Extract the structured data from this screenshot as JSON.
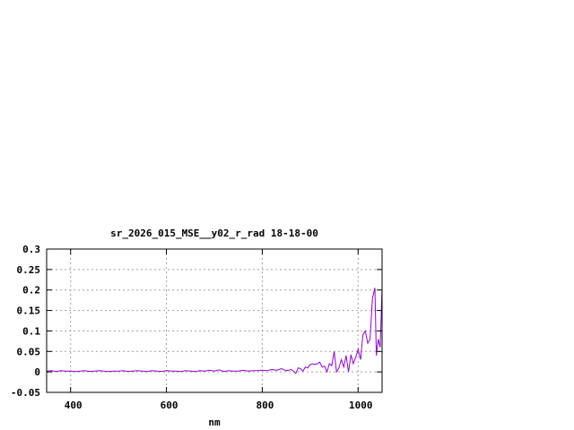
{
  "chart_data": {
    "type": "line",
    "title": "sr_2026_015_MSE__y02_r_rad 18-18-00",
    "xlabel": "nm",
    "ylabel": "",
    "xlim": [
      350,
      1050
    ],
    "ylim": [
      -0.05,
      0.3
    ],
    "xticks": [
      400,
      600,
      800,
      1000
    ],
    "xtick_labels": [
      "400",
      "600",
      "800",
      "1000"
    ],
    "yticks": [
      -0.05,
      0,
      0.05,
      0.1,
      0.15,
      0.2,
      0.25,
      0.3
    ],
    "ytick_labels": [
      "-0.05",
      "0",
      "0.05",
      "0.1",
      "0.15",
      "0.2",
      "0.25",
      "0.3"
    ],
    "grid": true,
    "legend": "none",
    "series": [
      {
        "color": "#9400d3",
        "x": [
          350,
          360,
          370,
          380,
          390,
          400,
          410,
          420,
          430,
          440,
          450,
          460,
          470,
          480,
          490,
          500,
          510,
          520,
          530,
          540,
          550,
          560,
          570,
          580,
          590,
          600,
          610,
          620,
          630,
          640,
          650,
          660,
          670,
          680,
          690,
          700,
          710,
          720,
          730,
          740,
          750,
          760,
          770,
          780,
          790,
          800,
          810,
          820,
          830,
          840,
          850,
          855,
          860,
          865,
          870,
          875,
          880,
          885,
          890,
          895,
          900,
          905,
          910,
          915,
          920,
          925,
          930,
          935,
          940,
          945,
          950,
          955,
          960,
          965,
          970,
          975,
          980,
          985,
          990,
          995,
          1000,
          1005,
          1010,
          1015,
          1020,
          1025,
          1030,
          1035,
          1038,
          1042,
          1046,
          1050
        ],
        "y": [
          0.002,
          0.003,
          0.001,
          0.003,
          0.002,
          0.002,
          0.001,
          0.002,
          0.003,
          0.001,
          0.002,
          0.003,
          0.002,
          0.001,
          0.002,
          0.002,
          0.003,
          0.001,
          0.002,
          0.003,
          0.002,
          0.001,
          0.003,
          0.002,
          0.001,
          0.003,
          0.002,
          0.002,
          0.001,
          0.003,
          0.002,
          0.001,
          0.003,
          0.002,
          0.004,
          0.002,
          0.005,
          0.001,
          0.003,
          0.002,
          0.002,
          0.004,
          0.002,
          0.003,
          0.003,
          0.004,
          0.003,
          0.006,
          0.004,
          0.008,
          0.003,
          0.004,
          0.006,
          0.002,
          -0.004,
          0.01,
          0.008,
          0.002,
          0.012,
          0.01,
          0.018,
          0.02,
          0.018,
          0.02,
          0.024,
          0.012,
          0.014,
          0.0,
          0.02,
          0.015,
          0.05,
          0.0,
          0.01,
          0.03,
          0.012,
          0.04,
          0.0,
          0.042,
          0.02,
          0.035,
          0.055,
          0.03,
          0.09,
          0.1,
          0.07,
          0.08,
          0.18,
          0.205,
          0.04,
          0.08,
          0.06,
          0.205
        ]
      }
    ]
  }
}
